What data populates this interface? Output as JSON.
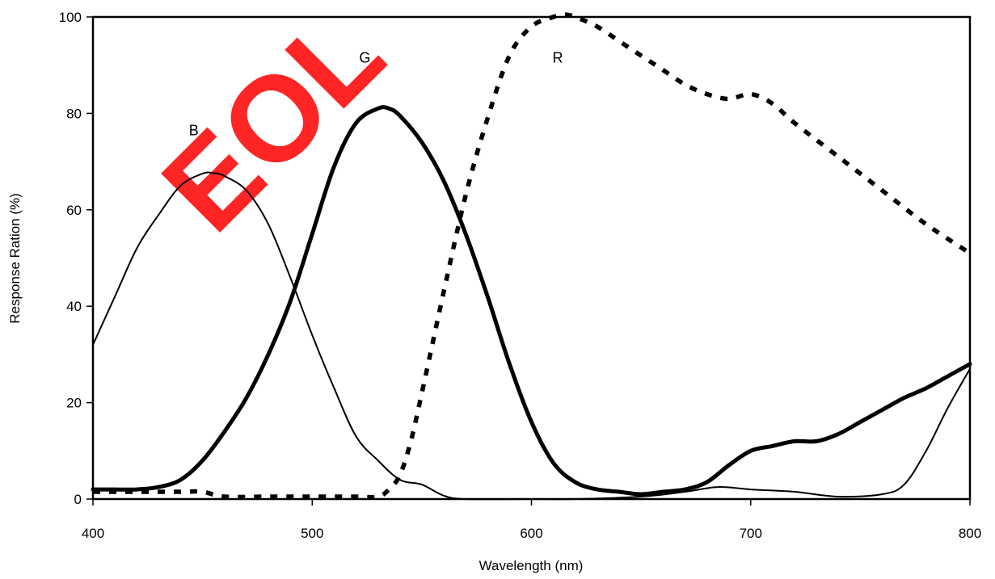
{
  "chart_data": {
    "type": "line",
    "title": "",
    "xlabel": "Wavelength (nm)",
    "ylabel": "Response Ration (%)",
    "xlim": [
      400,
      800
    ],
    "ylim": [
      0,
      100
    ],
    "xticks": [
      400,
      500,
      600,
      700,
      800
    ],
    "yticks": [
      0,
      20,
      40,
      60,
      80,
      100
    ],
    "grid": false,
    "legend": "none",
    "watermark": "EOL",
    "watermark_color": "#ff0000",
    "series": [
      {
        "name": "B",
        "style": "thin-solid",
        "color": "#000000",
        "x": [
          400,
          410,
          420,
          430,
          440,
          450,
          455,
          460,
          470,
          480,
          490,
          500,
          510,
          520,
          530,
          540,
          550,
          560,
          570,
          600,
          620,
          650,
          670,
          685,
          700,
          720,
          740,
          760,
          770,
          780,
          790,
          800
        ],
        "y": [
          32,
          42,
          52,
          59,
          65,
          67.5,
          67.6,
          67,
          64,
          57,
          46,
          34,
          23,
          13,
          8,
          4,
          3,
          0.7,
          0,
          0,
          0,
          0.5,
          1.5,
          2.5,
          2,
          1.5,
          0.5,
          1,
          3,
          10,
          19,
          27
        ]
      },
      {
        "name": "G",
        "style": "thick-solid",
        "color": "#000000",
        "x": [
          400,
          410,
          420,
          430,
          440,
          450,
          460,
          470,
          480,
          490,
          500,
          510,
          520,
          530,
          535,
          540,
          550,
          560,
          570,
          580,
          590,
          600,
          610,
          620,
          630,
          640,
          650,
          660,
          670,
          680,
          690,
          700,
          710,
          720,
          730,
          740,
          750,
          760,
          770,
          780,
          790,
          800
        ],
        "y": [
          2,
          2,
          2,
          2.5,
          4,
          8,
          14,
          21,
          30,
          41,
          55,
          69,
          78,
          81,
          81,
          79.5,
          74,
          66,
          55,
          42,
          28,
          16,
          7.5,
          3.5,
          2,
          1.5,
          1,
          1.5,
          2,
          3.5,
          7,
          10,
          11,
          12,
          12,
          13.5,
          16,
          18.5,
          21,
          23,
          25.5,
          28
        ]
      },
      {
        "name": "R",
        "style": "thick-dashed",
        "color": "#000000",
        "x": [
          400,
          410,
          420,
          430,
          440,
          450,
          460,
          480,
          500,
          520,
          530,
          535,
          540,
          545,
          550,
          560,
          570,
          580,
          590,
          600,
          610,
          615,
          620,
          630,
          640,
          650,
          660,
          670,
          680,
          690,
          700,
          710,
          720,
          740,
          760,
          780,
          800
        ],
        "y": [
          1.5,
          1.5,
          1.5,
          1.5,
          1.5,
          1.5,
          0.5,
          0.5,
          0.5,
          0.5,
          0.5,
          2,
          5,
          12,
          22,
          43,
          63,
          79,
          92,
          98,
          100,
          100.5,
          100,
          98,
          95,
          92,
          89,
          86,
          84,
          83,
          84,
          82,
          78,
          71,
          64,
          57,
          51
        ]
      }
    ],
    "annotations": [
      {
        "text": "B",
        "x": 446,
        "y": 75.5
      },
      {
        "text": "G",
        "x": 524,
        "y": 90.5
      },
      {
        "text": "R",
        "x": 612,
        "y": 90.5
      }
    ]
  }
}
